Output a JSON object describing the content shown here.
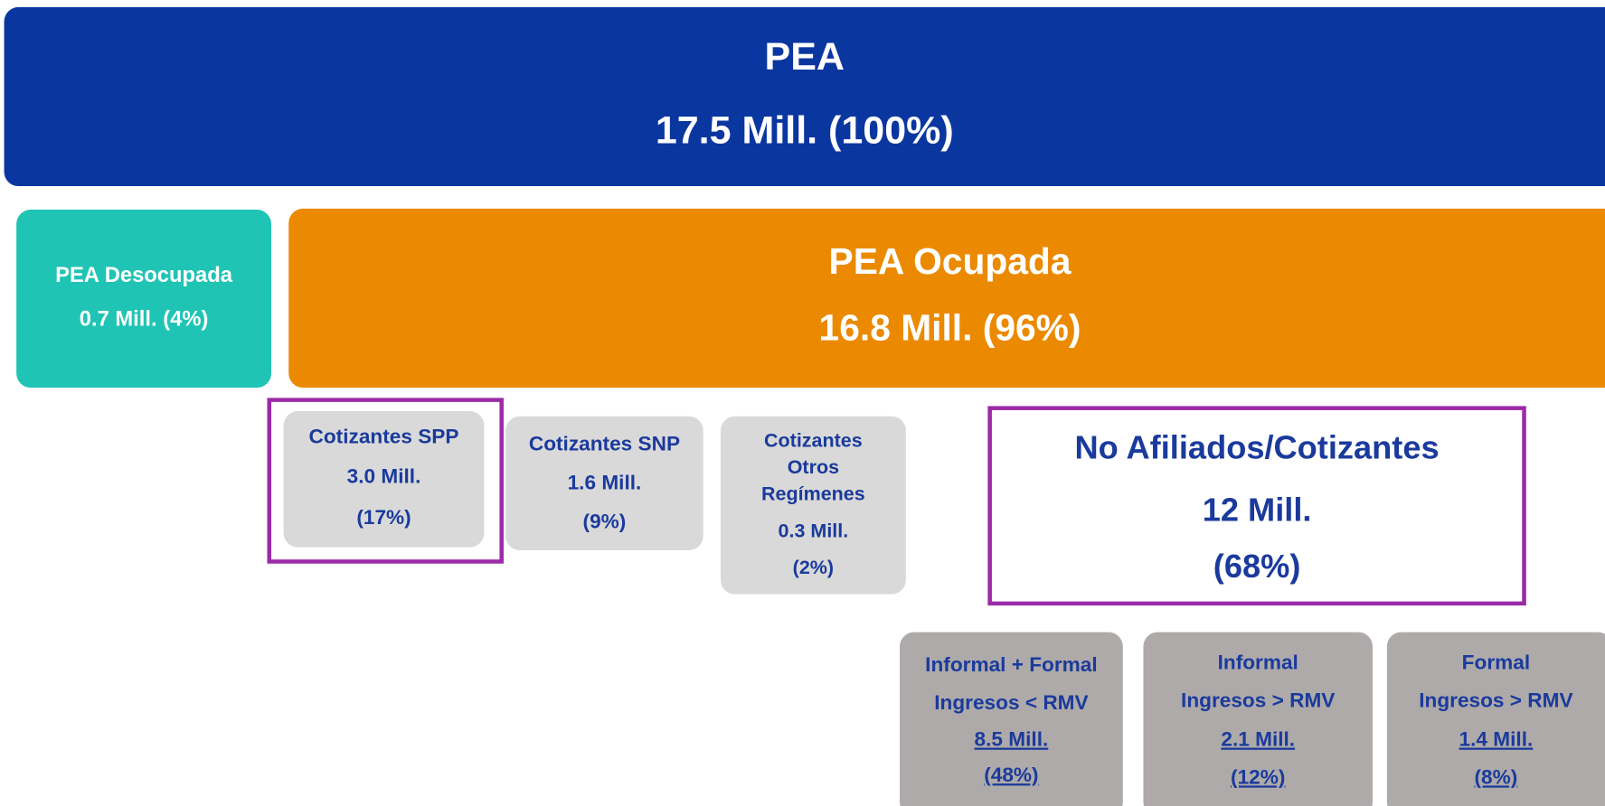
{
  "nodes": [
    {
      "lines": [
        "PEA",
        "17.5 Mill. (100%)"
      ]
    },
    {
      "lines": [
        "PEA Desocupada",
        "0.7 Mill. (4%)"
      ]
    },
    {
      "lines": [
        "PEA Ocupada",
        "16.8 Mill. (96%)"
      ]
    },
    {
      "lines": [
        "Cotizantes SPP",
        "3.0 Mill.",
        "(17%)"
      ]
    },
    {
      "lines": [
        "Cotizantes SNP",
        "1.6 Mill.",
        "(9%)"
      ]
    },
    {
      "lines": [
        "Cotizantes",
        "Otros",
        "Regímenes",
        "0.3 Mill.",
        "(2%)"
      ]
    },
    {
      "lines": [
        "No Afiliados/Cotizantes",
        "12 Mill.",
        "(68%)"
      ]
    },
    {
      "lines": [
        "Informal + Formal",
        "Ingresos < RMV",
        "8.5 Mill.",
        "(48%)"
      ]
    },
    {
      "lines": [
        "Informal",
        "Ingresos > RMV",
        "2.1 Mill.",
        "(12%)"
      ]
    },
    {
      "lines": [
        "Formal",
        "Ingresos > RMV",
        "1.4 Mill.",
        "(8%)"
      ]
    }
  ]
}
